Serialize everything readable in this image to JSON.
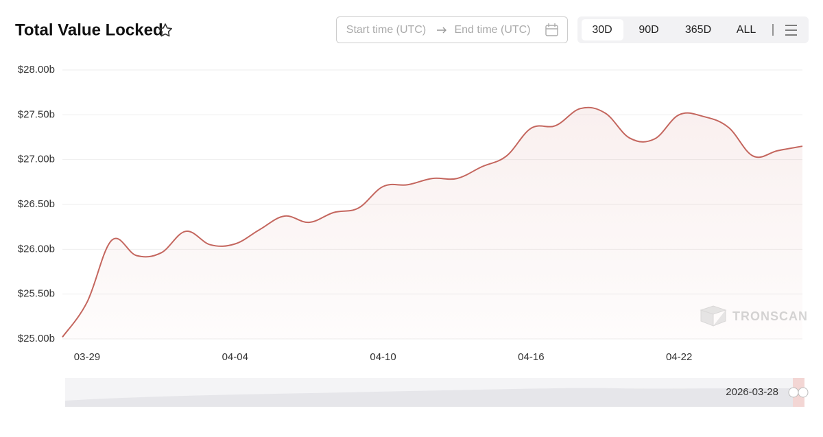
{
  "ui": {
    "start_placeholder": "Start time (UTC)",
    "end_placeholder": "End time (UTC)",
    "ranges": [
      "30D",
      "90D",
      "365D",
      "ALL"
    ],
    "active_range": 0,
    "watermark": "TRONSCAN",
    "navigator_date": "2026-03-28"
  },
  "chart_data": {
    "type": "area",
    "title": "Total Value Locked",
    "color": "#c4665e",
    "x": [
      "03-28",
      "03-29",
      "03-30",
      "03-31",
      "04-01",
      "04-02",
      "04-03",
      "04-04",
      "04-05",
      "04-06",
      "04-07",
      "04-08",
      "04-09",
      "04-10",
      "04-11",
      "04-12",
      "04-13",
      "04-14",
      "04-15",
      "04-16",
      "04-17",
      "04-18",
      "04-19",
      "04-20",
      "04-21",
      "04-22",
      "04-23",
      "04-24",
      "04-25",
      "04-26",
      "04-27"
    ],
    "values": [
      25.02,
      25.41,
      26.1,
      25.93,
      25.96,
      26.2,
      26.05,
      26.06,
      26.22,
      26.37,
      26.3,
      26.41,
      26.46,
      26.7,
      26.72,
      26.79,
      26.79,
      26.92,
      27.04,
      27.35,
      27.38,
      27.57,
      27.52,
      27.24,
      27.23,
      27.5,
      27.48,
      27.36,
      27.04,
      27.1,
      27.15
    ],
    "xticks": [
      "03-29",
      "04-04",
      "04-10",
      "04-16",
      "04-22"
    ],
    "ylim": [
      25,
      28
    ],
    "yticks": [
      {
        "value": 25,
        "label": "$25.00b"
      },
      {
        "value": 25.5,
        "label": "$25.50b"
      },
      {
        "value": 26,
        "label": "$26.00b"
      },
      {
        "value": 26.5,
        "label": "$26.50b"
      },
      {
        "value": 27,
        "label": "$27.00b"
      },
      {
        "value": 27.5,
        "label": "$27.50b"
      },
      {
        "value": 28,
        "label": "$28.00b"
      }
    ],
    "grid": true
  }
}
